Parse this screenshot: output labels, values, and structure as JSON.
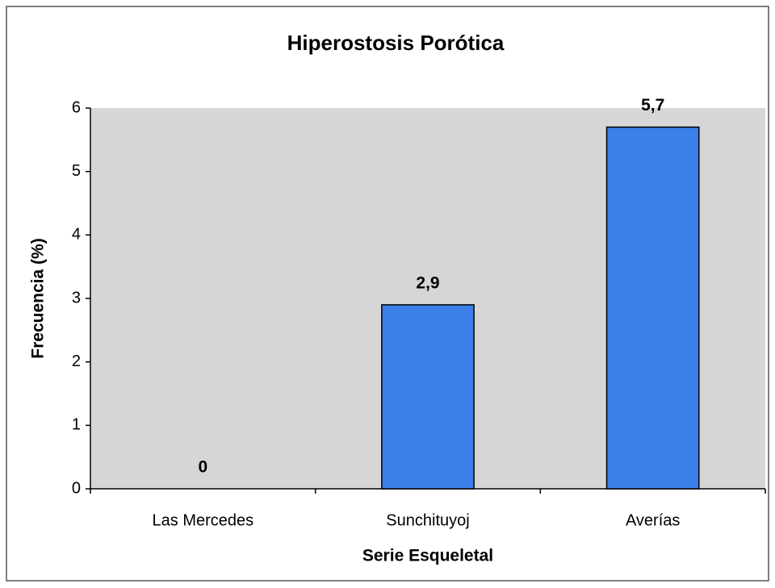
{
  "chart_data": {
    "type": "bar",
    "title": "Hiperostosis Porótica",
    "x_label": "Serie Esqueletal",
    "y_label": "Frecuencia (%)",
    "categories": [
      "Las Mercedes",
      "Sunchituyoj",
      "Averías"
    ],
    "values": [
      0,
      2.9,
      5.7
    ],
    "value_labels": [
      "0",
      "2,9",
      "5,7"
    ],
    "color": "#3b7fe8",
    "ylim": [
      0,
      6
    ],
    "yticks": [
      0,
      1,
      2,
      3,
      4,
      5,
      6
    ],
    "grid": false
  }
}
